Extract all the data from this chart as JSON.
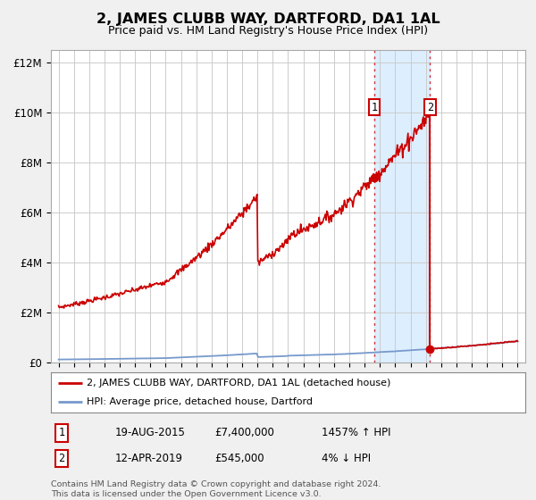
{
  "title": "2, JAMES CLUBB WAY, DARTFORD, DA1 1AL",
  "subtitle": "Price paid vs. HM Land Registry's House Price Index (HPI)",
  "xlim": [
    1994.5,
    2025.5
  ],
  "ylim": [
    0,
    12500000
  ],
  "yticks": [
    0,
    2000000,
    4000000,
    6000000,
    8000000,
    10000000,
    12000000
  ],
  "ytick_labels": [
    "£0",
    "£2M",
    "£4M",
    "£6M",
    "£8M",
    "£10M",
    "£12M"
  ],
  "xticks": [
    1995,
    1996,
    1997,
    1998,
    1999,
    2000,
    2001,
    2002,
    2003,
    2004,
    2005,
    2006,
    2007,
    2008,
    2009,
    2010,
    2011,
    2012,
    2013,
    2014,
    2015,
    2016,
    2017,
    2018,
    2019,
    2020,
    2021,
    2022,
    2023,
    2024,
    2025
  ],
  "hpi_line_color": "#7799cc",
  "red_line_color": "#cc0000",
  "point1_date": 2015.63,
  "point1_value": 7400000,
  "point2_date": 2019.28,
  "point2_value": 545000,
  "shade_color": "#ddeeff",
  "legend_label1": "2, JAMES CLUBB WAY, DARTFORD, DA1 1AL (detached house)",
  "legend_label2": "HPI: Average price, detached house, Dartford",
  "table_row1_num": "1",
  "table_row1_date": "19-AUG-2015",
  "table_row1_price": "£7,400,000",
  "table_row1_hpi": "1457% ↑ HPI",
  "table_row2_num": "2",
  "table_row2_date": "12-APR-2019",
  "table_row2_price": "£545,000",
  "table_row2_hpi": "4% ↓ HPI",
  "footnote1": "Contains HM Land Registry data © Crown copyright and database right 2024.",
  "footnote2": "This data is licensed under the Open Government Licence v3.0.",
  "bg_color": "#f0f0f0",
  "plot_bg_color": "#ffffff"
}
